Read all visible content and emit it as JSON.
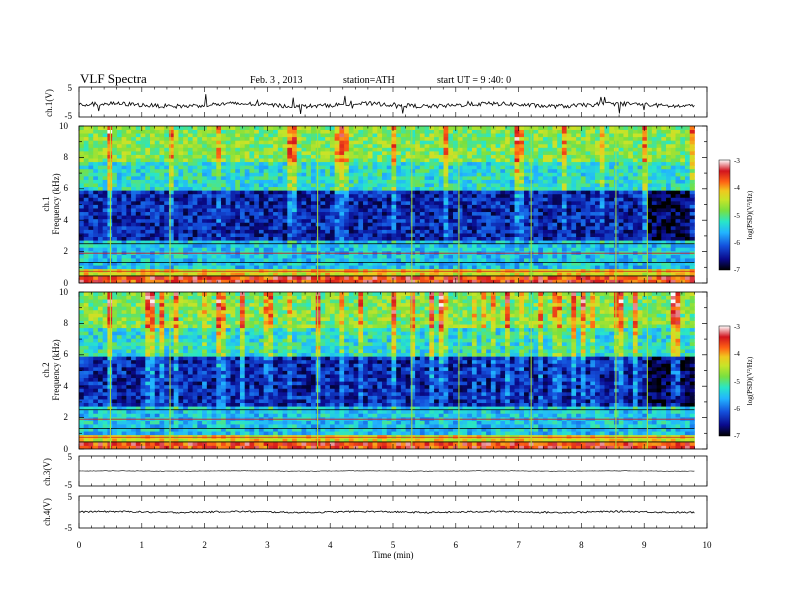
{
  "header": {
    "title": "VLF Spectra",
    "date": "Feb. 3 , 2013",
    "station": "station=ATH",
    "start": "start UT =  9 :40: 0"
  },
  "colors": {
    "scale": [
      "#000000",
      "#0a0a8c",
      "#1450dc",
      "#22b4ff",
      "#28e6c8",
      "#78e040",
      "#c8e428",
      "#f0c81e",
      "#ff6414",
      "#d2141e",
      "#ffffff"
    ],
    "trace": "#000000"
  },
  "chart_data": [
    {
      "type": "line",
      "name": "ch1-waveform",
      "ylabel": "ch.1(V)",
      "ylim": [
        -5,
        5
      ],
      "yticks": [
        "5",
        "-5"
      ],
      "x_range_min": [
        0,
        9.8
      ],
      "description_level": "noisy waveform around -1 V with sporadic spikes"
    },
    {
      "type": "heatmap",
      "name": "ch1-spectrogram",
      "ylabel": [
        "ch.1",
        "Frequency (kHz)"
      ],
      "ylim": [
        0,
        10
      ],
      "yticks": [
        "0",
        "2",
        "4",
        "6",
        "8",
        "10"
      ],
      "colorbar": {
        "label": "log(PSD)(V²/Hz)",
        "range": [
          -7,
          -3
        ],
        "ticks": [
          "-3",
          "-4",
          "-5",
          "-6",
          "-7"
        ]
      },
      "bands_khz": [
        {
          "f": [
            0.0,
            0.4
          ],
          "level": -3.6
        },
        {
          "f": [
            0.4,
            0.8
          ],
          "level": -4.3
        },
        {
          "f": [
            0.8,
            2.7
          ],
          "level": -5.5
        },
        {
          "f": [
            2.7,
            6.0
          ],
          "level": -6.4
        },
        {
          "f": [
            6.0,
            7.8
          ],
          "level": -5.3
        },
        {
          "f": [
            7.8,
            10.0
          ],
          "level": -4.8
        }
      ]
    },
    {
      "type": "heatmap",
      "name": "ch2-spectrogram",
      "ylabel": [
        "ch.2",
        "Frequency (kHz)"
      ],
      "ylim": [
        0,
        10
      ],
      "yticks": [
        "0",
        "2",
        "4",
        "6",
        "8",
        "10"
      ],
      "colorbar": {
        "label": "log(PSD)(V²/Hz)",
        "range": [
          -7,
          -3
        ],
        "ticks": [
          "-3",
          "-4",
          "-5",
          "-6",
          "-7"
        ]
      },
      "bands_khz": [
        {
          "f": [
            0.0,
            0.4
          ],
          "level": -3.6
        },
        {
          "f": [
            0.4,
            0.8
          ],
          "level": -4.3
        },
        {
          "f": [
            0.8,
            2.7
          ],
          "level": -5.5
        },
        {
          "f": [
            2.7,
            6.0
          ],
          "level": -6.4
        },
        {
          "f": [
            6.0,
            7.8
          ],
          "level": -5.3
        },
        {
          "f": [
            7.8,
            10.0
          ],
          "level": -4.8
        }
      ]
    },
    {
      "type": "line",
      "name": "ch3-waveform",
      "ylabel": "ch.3(V)",
      "ylim": [
        -5,
        5
      ],
      "yticks": [
        "5",
        "-5"
      ],
      "level": 0
    },
    {
      "type": "line",
      "name": "ch4-waveform",
      "ylabel": "ch.4(V)",
      "ylim": [
        -5,
        5
      ],
      "yticks": [
        "5",
        "-5"
      ],
      "level": 0
    }
  ],
  "xaxis": {
    "label": "Time  (min)",
    "range": [
      0,
      10
    ],
    "ticks": [
      "0",
      "1",
      "2",
      "3",
      "4",
      "5",
      "6",
      "7",
      "8",
      "9",
      "10"
    ]
  }
}
